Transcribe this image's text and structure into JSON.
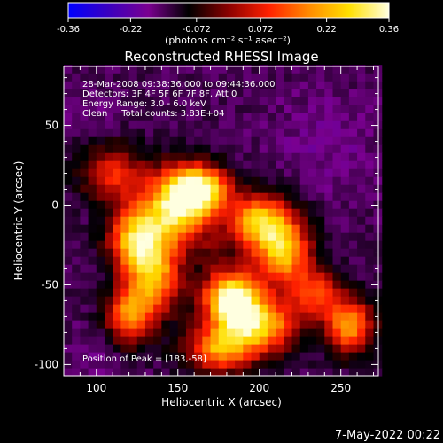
{
  "colorbar": {
    "ticks": [
      "-0.36",
      "-0.22",
      "-0.072",
      "0.072",
      "0.22",
      "0.36"
    ],
    "unit_label": "(photons cm⁻² s⁻¹ asec⁻²)",
    "range": [
      -0.36,
      0.36
    ],
    "colors": [
      "#0000ff",
      "#3a00c0",
      "#7a0090",
      "#000000",
      "#8b0000",
      "#ff2000",
      "#ff8a00",
      "#ffe000",
      "#ffffe0"
    ]
  },
  "title": "Reconstructed RHESSI Image",
  "info": {
    "line1": "28-Mar-2008 09:38:36.000 to 09:44:36.000",
    "line2": "Detectors: 3F 4F 5F 6F 7F 8F, Att 0",
    "line3": "Energy Range: 3.0 - 6.0 keV",
    "line4": "Clean     Total counts: 3.83E+04"
  },
  "peak": "Position of Peak = [183,-58]",
  "timestamp": "7-May-2022 00:22",
  "chart_data": {
    "type": "heatmap",
    "title": "Reconstructed RHESSI Image",
    "xlabel": "Heliocentric X (arcsec)",
    "ylabel": "Heliocentric Y (arcsec)",
    "xlim": [
      80,
      273
    ],
    "ylim": [
      -107,
      87
    ],
    "xticks": [
      "100",
      "150",
      "200",
      "250"
    ],
    "xtick_values": [
      100,
      150,
      200,
      250
    ],
    "yticks": [
      "-100",
      "-50",
      "0",
      "50"
    ],
    "ytick_values": [
      -100,
      -50,
      0,
      50
    ],
    "peak_position": [
      183,
      -58
    ],
    "features": [
      {
        "x": 150,
        "y": 0,
        "sx": 14,
        "sy": 16,
        "value": 0.3
      },
      {
        "x": 165,
        "y": 10,
        "sx": 12,
        "sy": 10,
        "value": 0.24
      },
      {
        "x": 125,
        "y": -20,
        "sx": 12,
        "sy": 14,
        "value": 0.24
      },
      {
        "x": 135,
        "y": -45,
        "sx": 12,
        "sy": 16,
        "value": 0.2
      },
      {
        "x": 120,
        "y": -70,
        "sx": 10,
        "sy": 12,
        "value": 0.16
      },
      {
        "x": 200,
        "y": -10,
        "sx": 14,
        "sy": 12,
        "value": 0.24
      },
      {
        "x": 215,
        "y": -30,
        "sx": 12,
        "sy": 14,
        "value": 0.22
      },
      {
        "x": 183,
        "y": -58,
        "sx": 12,
        "sy": 12,
        "value": 0.36
      },
      {
        "x": 200,
        "y": -75,
        "sx": 16,
        "sy": 12,
        "value": 0.24
      },
      {
        "x": 175,
        "y": -90,
        "sx": 14,
        "sy": 10,
        "value": 0.18
      },
      {
        "x": 255,
        "y": -75,
        "sx": 10,
        "sy": 12,
        "value": 0.2
      },
      {
        "x": 235,
        "y": -55,
        "sx": 10,
        "sy": 10,
        "value": 0.1
      },
      {
        "x": 170,
        "y": -28,
        "sx": 8,
        "sy": 8,
        "value": -0.05
      },
      {
        "x": 110,
        "y": 20,
        "sx": 14,
        "sy": 12,
        "value": 0.08
      },
      {
        "x": 95,
        "y": 60,
        "sx": 12,
        "sy": 12,
        "value": -0.18
      },
      {
        "x": 240,
        "y": 40,
        "sx": 25,
        "sy": 25,
        "value": -0.2
      },
      {
        "x": 100,
        "y": -95,
        "sx": 12,
        "sy": 12,
        "value": -0.2
      }
    ]
  }
}
